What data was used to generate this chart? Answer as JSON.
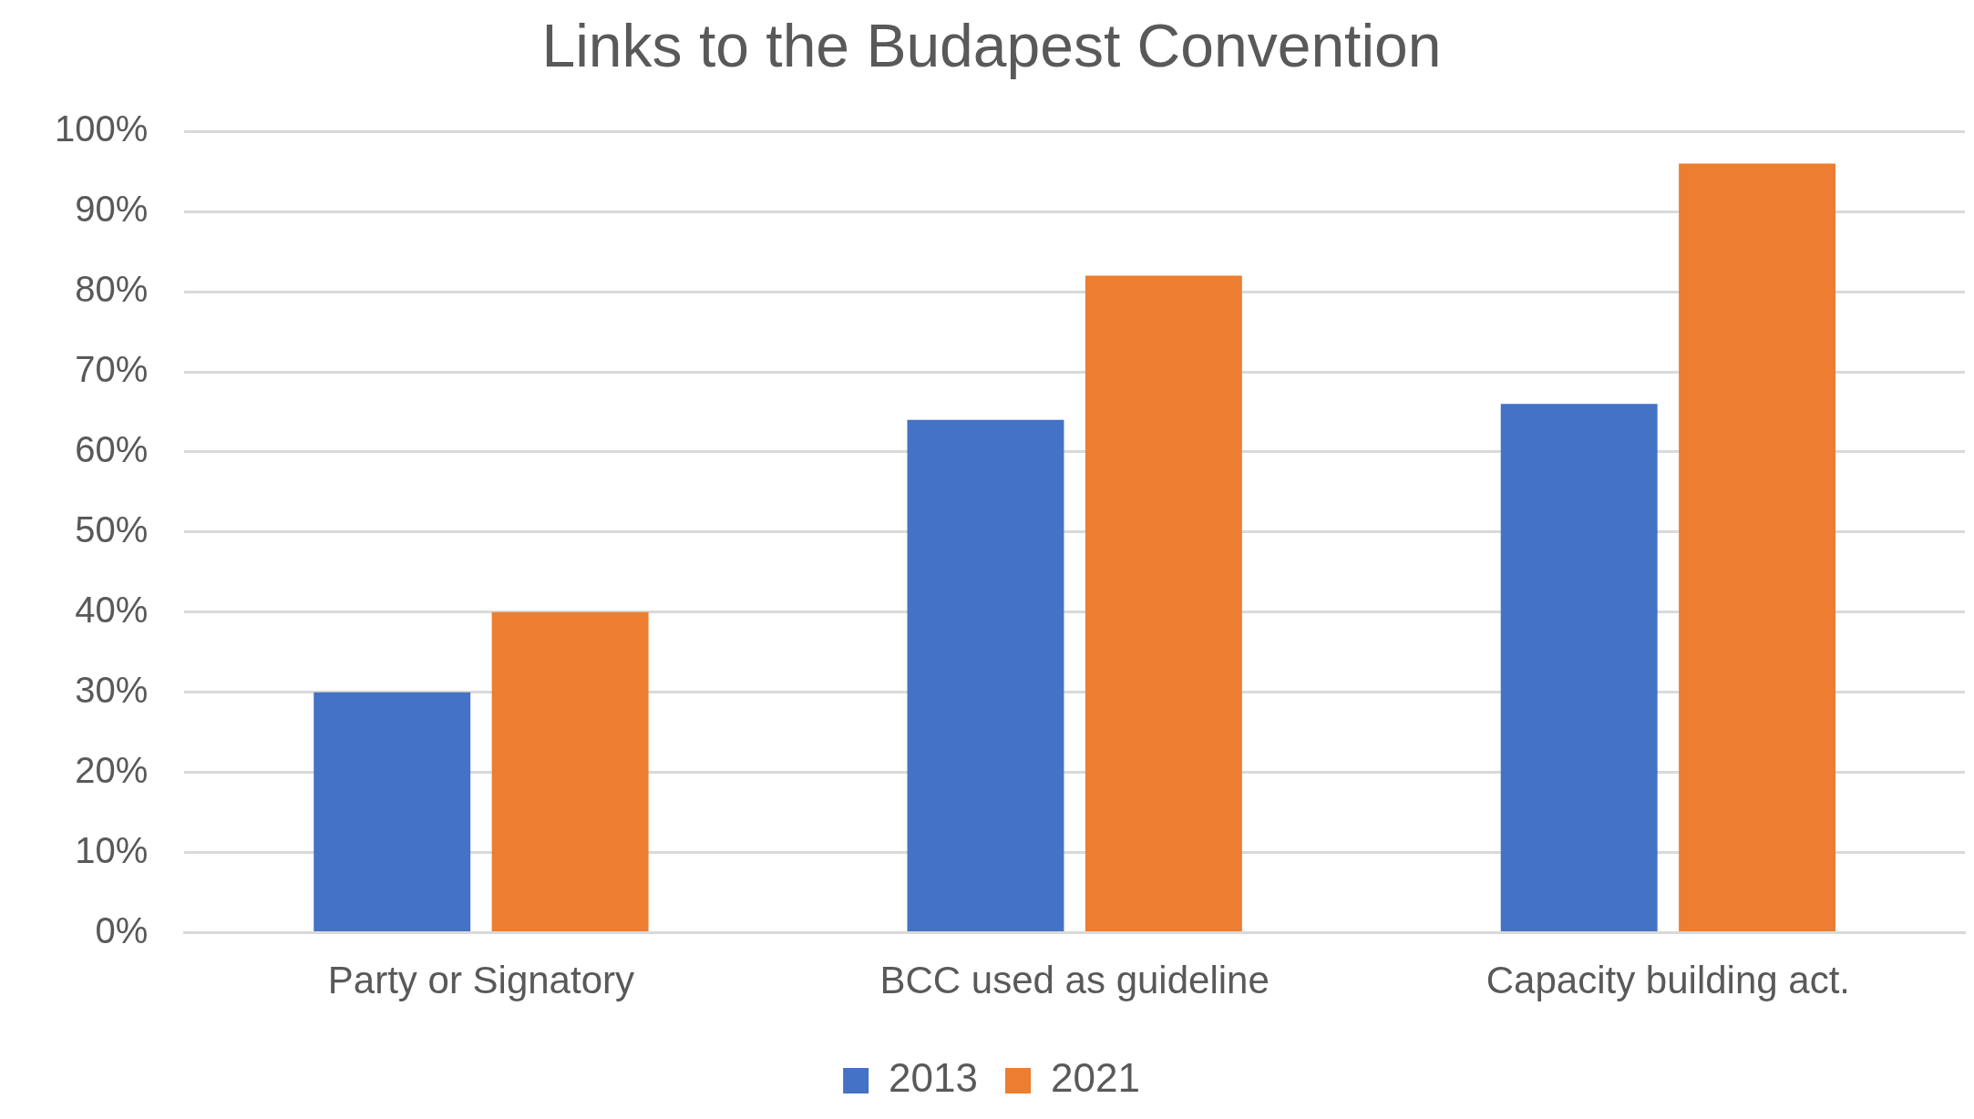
{
  "chart_data": {
    "type": "bar",
    "title": "Links to the Budapest Convention",
    "categories": [
      "Party or Signatory",
      "BCC used as guideline",
      "Capacity building act."
    ],
    "series": [
      {
        "name": "2013",
        "color": "#4472c4",
        "values": [
          30,
          64,
          66
        ]
      },
      {
        "name": "2021",
        "color": "#ed7d31",
        "values": [
          40,
          82,
          96
        ]
      }
    ],
    "ylim": [
      0,
      100
    ],
    "yticks": [
      {
        "value": 0,
        "label": "0%"
      },
      {
        "value": 10,
        "label": "10%"
      },
      {
        "value": 20,
        "label": "20%"
      },
      {
        "value": 30,
        "label": "30%"
      },
      {
        "value": 40,
        "label": "40%"
      },
      {
        "value": 50,
        "label": "50%"
      },
      {
        "value": 60,
        "label": "60%"
      },
      {
        "value": 70,
        "label": "70%"
      },
      {
        "value": 80,
        "label": "80%"
      },
      {
        "value": 90,
        "label": "90%"
      },
      {
        "value": 100,
        "label": "100%"
      }
    ],
    "grid": "y",
    "legend": "bottom"
  }
}
